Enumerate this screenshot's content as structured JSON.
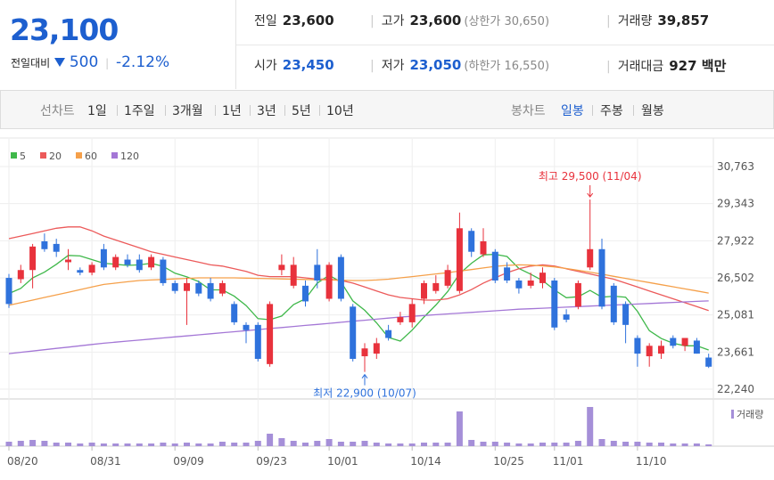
{
  "quote": {
    "price": "23,100",
    "change_label": "전일대비",
    "change": "500",
    "change_pct": "-2.12%"
  },
  "summary": [
    [
      {
        "label": "전일",
        "value": "23,600"
      },
      {
        "label": "고가",
        "value": "23,600",
        "note": "(상한가 30,650)"
      },
      {
        "label": "거래량",
        "value": "39,857"
      }
    ],
    [
      {
        "label": "시가",
        "value": "23,450"
      },
      {
        "label": "저가",
        "value": "23,050",
        "note": "(하한가 16,550)"
      },
      {
        "label": "거래대금",
        "value": "927 백만"
      }
    ]
  ],
  "line_tabs": {
    "label": "선차트",
    "items": [
      "1일",
      "1주일",
      "3개월",
      "1년",
      "3년",
      "5년",
      "10년"
    ]
  },
  "candle_tabs": {
    "label": "봉차트",
    "items": [
      "일봉",
      "주봉",
      "월봉"
    ],
    "active": 0
  },
  "chart_data": {
    "type": "candlestick",
    "categories": [
      "08/20",
      null,
      null,
      null,
      null,
      null,
      null,
      "08/31",
      null,
      null,
      null,
      null,
      null,
      null,
      "09/09",
      null,
      null,
      null,
      null,
      null,
      null,
      "09/23",
      null,
      null,
      null,
      null,
      null,
      "10/01",
      null,
      null,
      null,
      null,
      null,
      null,
      "10/14",
      null,
      null,
      null,
      null,
      null,
      null,
      "10/25",
      null,
      null,
      null,
      null,
      "11/01",
      null,
      null,
      null,
      null,
      null,
      null,
      "11/10",
      null,
      null,
      null,
      null,
      null,
      null
    ],
    "open": [
      26500,
      26450,
      26800,
      27900,
      27800,
      27100,
      26800,
      26700,
      27600,
      26900,
      27200,
      27200,
      26900,
      27200,
      26300,
      26000,
      26300,
      26300,
      25900,
      25500,
      24700,
      24700,
      23200,
      26800,
      26200,
      26200,
      27000,
      25700,
      27300,
      25400,
      23500,
      23600,
      24500,
      24800,
      24800,
      25700,
      26000,
      26200,
      26000,
      28300,
      27400,
      27500,
      26900,
      26400,
      26200,
      26300,
      26400,
      25100,
      25400,
      26900,
      27600,
      26200,
      25500,
      24200,
      23500,
      23600,
      24200,
      23900,
      24100,
      23450
    ],
    "high": [
      26650,
      27000,
      27800,
      28200,
      28000,
      27600,
      26900,
      27100,
      27800,
      27400,
      27400,
      27400,
      27400,
      27300,
      26400,
      26500,
      26400,
      26500,
      26400,
      25600,
      24800,
      24800,
      25600,
      27400,
      27300,
      26400,
      27600,
      27100,
      27400,
      25500,
      24000,
      24200,
      24700,
      25200,
      25700,
      26400,
      26600,
      27000,
      29000,
      28400,
      28400,
      27600,
      27100,
      26500,
      26700,
      26900,
      26500,
      25300,
      26400,
      29500,
      28000,
      26300,
      25600,
      24300,
      24000,
      24100,
      24300,
      24200,
      24200,
      23600
    ],
    "low": [
      25350,
      26300,
      26100,
      27500,
      27300,
      26800,
      26600,
      26600,
      26800,
      26800,
      26900,
      26700,
      26800,
      26200,
      25900,
      24700,
      25800,
      25600,
      25800,
      24700,
      24000,
      23300,
      23100,
      26600,
      26100,
      25400,
      26100,
      25600,
      25600,
      23300,
      22900,
      23400,
      24100,
      24700,
      24600,
      25500,
      25900,
      26100,
      25900,
      27300,
      27300,
      26300,
      26300,
      25900,
      26100,
      26100,
      24500,
      24800,
      25300,
      26800,
      25300,
      24700,
      24000,
      23100,
      23100,
      23400,
      23800,
      23700,
      23600,
      23050
    ],
    "close": [
      25500,
      26800,
      27700,
      27600,
      27500,
      27200,
      26700,
      27000,
      26900,
      27300,
      27000,
      26800,
      27300,
      26300,
      26000,
      26300,
      25900,
      25700,
      26300,
      24800,
      24500,
      23400,
      25500,
      27000,
      27000,
      25600,
      26400,
      27000,
      25700,
      23400,
      23800,
      24000,
      24200,
      25000,
      25500,
      26300,
      26300,
      26800,
      28400,
      27500,
      27900,
      26400,
      26400,
      26100,
      26400,
      26700,
      24600,
      24900,
      26300,
      27600,
      25400,
      24800,
      24700,
      23600,
      23900,
      23900,
      23900,
      24200,
      23600,
      23100
    ],
    "up_color": "#e8323c",
    "down_color": "#2f72dc",
    "series": [
      {
        "name": "5",
        "color": "#3fb84a",
        "values": [
          25900,
          26100,
          26500,
          26720,
          27020,
          27360,
          27340,
          27200,
          27060,
          27020,
          26980,
          27000,
          27060,
          26940,
          26680,
          26540,
          26360,
          26040,
          26040,
          25800,
          25440,
          24940,
          24900,
          25040,
          25480,
          25700,
          26300,
          26600,
          26340,
          25620,
          25260,
          24780,
          24220,
          24080,
          24500,
          25000,
          25460,
          25980,
          26660,
          27060,
          27380,
          27400,
          27320,
          26860,
          26640,
          26400,
          26040,
          25740,
          25780,
          26020,
          25760,
          25800,
          25760,
          25220,
          24480,
          24180,
          24000,
          23900,
          23900,
          23740
        ]
      },
      {
        "name": "20",
        "color": "#ec5a5a",
        "values": [
          28000,
          28100,
          28200,
          28300,
          28400,
          28450,
          28450,
          28300,
          28100,
          27950,
          27800,
          27650,
          27500,
          27400,
          27300,
          27200,
          27100,
          27000,
          26950,
          26850,
          26750,
          26600,
          26550,
          26550,
          26550,
          26500,
          26450,
          26450,
          26400,
          26300,
          26150,
          26000,
          25850,
          25750,
          25700,
          25650,
          25650,
          25700,
          25850,
          26050,
          26300,
          26500,
          26700,
          26850,
          26950,
          27000,
          26950,
          26850,
          26750,
          26650,
          26550,
          26450,
          26300,
          26150,
          26000,
          25850,
          25700,
          25550,
          25400,
          25250
        ]
      },
      {
        "name": "60",
        "color": "#f5a04a",
        "values": [
          25450,
          25550,
          25650,
          25750,
          25850,
          25950,
          26050,
          26150,
          26250,
          26300,
          26350,
          26400,
          26420,
          26440,
          26460,
          26480,
          26500,
          26500,
          26500,
          26500,
          26490,
          26480,
          26470,
          26460,
          26450,
          26440,
          26430,
          26420,
          26410,
          26400,
          26400,
          26420,
          26450,
          26500,
          26550,
          26600,
          26650,
          26700,
          26760,
          26820,
          26880,
          26940,
          26980,
          27000,
          26990,
          26960,
          26920,
          26860,
          26790,
          26720,
          26640,
          26560,
          26480,
          26400,
          26320,
          26240,
          26160,
          26080,
          26000,
          25920
        ]
      },
      {
        "name": "120",
        "color": "#a477d6",
        "values": [
          23600,
          23650,
          23700,
          23750,
          23800,
          23850,
          23900,
          23950,
          24000,
          24040,
          24080,
          24120,
          24160,
          24200,
          24240,
          24280,
          24320,
          24360,
          24400,
          24440,
          24480,
          24520,
          24560,
          24600,
          24640,
          24680,
          24720,
          24760,
          24800,
          24840,
          24880,
          24920,
          24960,
          25000,
          25030,
          25060,
          25090,
          25120,
          25150,
          25180,
          25210,
          25240,
          25270,
          25300,
          25320,
          25340,
          25360,
          25380,
          25400,
          25420,
          25440,
          25460,
          25480,
          25500,
          25520,
          25540,
          25560,
          25580,
          25600,
          25620
        ]
      }
    ],
    "volume": {
      "name": "거래량",
      "color": "#a58fd8",
      "ylim": [
        0,
        1000000
      ],
      "values": [
        100000,
        120000,
        140000,
        120000,
        80000,
        80000,
        60000,
        80000,
        60000,
        60000,
        60000,
        60000,
        60000,
        80000,
        60000,
        80000,
        60000,
        60000,
        100000,
        80000,
        80000,
        120000,
        280000,
        180000,
        120000,
        80000,
        120000,
        160000,
        100000,
        100000,
        120000,
        80000,
        60000,
        60000,
        60000,
        80000,
        80000,
        80000,
        780000,
        140000,
        100000,
        100000,
        80000,
        60000,
        60000,
        80000,
        80000,
        80000,
        120000,
        880000,
        160000,
        120000,
        100000,
        100000,
        80000,
        80000,
        60000,
        60000,
        60000,
        39857
      ]
    },
    "ylim": [
      22240,
      30763
    ],
    "yticks": [
      {
        "value": 30763,
        "label": "30,763"
      },
      {
        "value": 29343,
        "label": "29,343"
      },
      {
        "value": 27922,
        "label": "27,922"
      },
      {
        "value": 26502,
        "label": "26,502"
      },
      {
        "value": 25081,
        "label": "25,081"
      },
      {
        "value": 23661,
        "label": "23,661"
      },
      {
        "value": 22240,
        "label": "22,240"
      }
    ],
    "grid": true,
    "annotations": [
      {
        "text": "최고 29,500 (11/04)",
        "index": 49,
        "color": "#e8323c",
        "at": "high"
      },
      {
        "text": "최저 22,900 (10/07)",
        "index": 30,
        "color": "#2f72dc",
        "at": "low"
      }
    ]
  }
}
